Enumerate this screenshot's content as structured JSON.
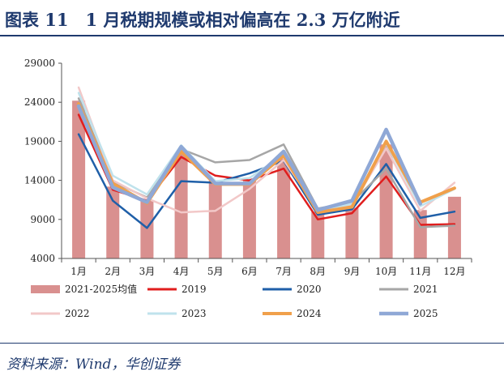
{
  "header": {
    "title": "图表 11　1 月税期规模或相对偏高在 2.3 万亿附近"
  },
  "footer": {
    "source": "资料来源：Wind，华创证券"
  },
  "chart_data": {
    "type": "bar+line",
    "title": "1 月税期规模或相对偏高在 2.3 万亿附近",
    "categories": [
      "1月",
      "2月",
      "3月",
      "4月",
      "5月",
      "6月",
      "7月",
      "8月",
      "9月",
      "10月",
      "11月",
      "12月"
    ],
    "ylim": [
      4000,
      29000
    ],
    "yticks": [
      4000,
      9000,
      14000,
      19000,
      24000,
      29000
    ],
    "bar_series": {
      "name": "2021-2025均值",
      "color": "#d9908f",
      "values": [
        24200,
        13200,
        11500,
        17400,
        14000,
        14000,
        16800,
        10000,
        10500,
        18600,
        10200,
        11900
      ]
    },
    "series": [
      {
        "name": "2019",
        "color": "#e01e1e",
        "width": 2.5,
        "values": [
          22400,
          12800,
          11400,
          17000,
          14600,
          14000,
          15500,
          9000,
          9800,
          14500,
          8300,
          8400
        ]
      },
      {
        "name": "2020",
        "color": "#1f5fa8",
        "width": 2.5,
        "values": [
          19900,
          11400,
          7900,
          13900,
          13700,
          14900,
          16500,
          9600,
          10300,
          16100,
          9200,
          10000
        ]
      },
      {
        "name": "2021",
        "color": "#a6a6a6",
        "width": 2.5,
        "values": [
          24500,
          13800,
          11800,
          18000,
          16300,
          16600,
          18600,
          10400,
          11200,
          15500,
          8000,
          8200
        ]
      },
      {
        "name": "2022",
        "color": "#f2c8c8",
        "width": 2.5,
        "values": [
          25900,
          14000,
          11700,
          9900,
          10100,
          12900,
          16600,
          10200,
          10800,
          18100,
          10100,
          13700
        ]
      },
      {
        "name": "2023",
        "color": "#bfe2ec",
        "width": 2.5,
        "values": [
          25200,
          14600,
          12200,
          18500,
          13900,
          14300,
          17300,
          10100,
          11000,
          18700,
          10700,
          12900
        ]
      },
      {
        "name": "2024",
        "color": "#f0a04b",
        "width": 4,
        "values": [
          23800,
          13600,
          11100,
          17700,
          13500,
          13500,
          17200,
          9900,
          10600,
          19000,
          11200,
          13000
        ]
      },
      {
        "name": "2025",
        "color": "#8fa8d6",
        "width": 4.5,
        "values": [
          23500,
          13100,
          11200,
          18300,
          13600,
          13600,
          17700,
          10200,
          11400,
          20500,
          11000,
          null
        ]
      }
    ]
  }
}
